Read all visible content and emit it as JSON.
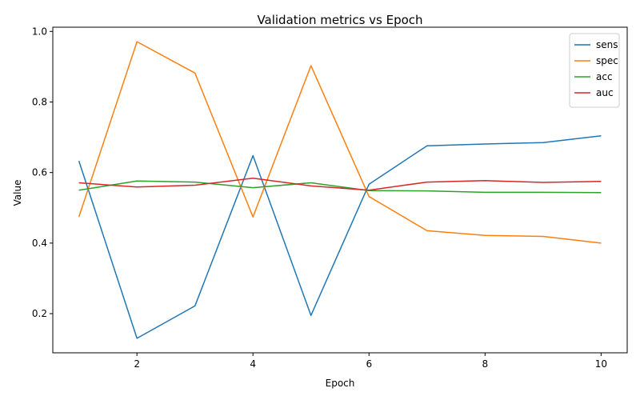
{
  "chart_data": {
    "type": "line",
    "title": "Validation metrics vs Epoch",
    "xlabel": "Epoch",
    "ylabel": "Value",
    "xlim": [
      0.55,
      10.45
    ],
    "ylim": [
      0.089,
      1.012
    ],
    "x_ticks": [
      2,
      4,
      6,
      8,
      10
    ],
    "y_ticks": [
      0.2,
      0.4,
      0.6,
      0.8,
      1.0
    ],
    "y_tick_labels": [
      "0.2",
      "0.4",
      "0.6",
      "0.8",
      "1.0"
    ],
    "grid": false,
    "legend_position": "top-right",
    "x": [
      1,
      2,
      3,
      4,
      5,
      6,
      7,
      8,
      9,
      10
    ],
    "series": [
      {
        "name": "sens",
        "color": "#1f77b4",
        "values": [
          0.633,
          0.13,
          0.222,
          0.648,
          0.195,
          0.567,
          0.676,
          0.681,
          0.685,
          0.704
        ]
      },
      {
        "name": "spec",
        "color": "#ff7f0e",
        "values": [
          0.474,
          0.971,
          0.882,
          0.474,
          0.903,
          0.532,
          0.435,
          0.422,
          0.419,
          0.4
        ]
      },
      {
        "name": "acc",
        "color": "#2ca02c",
        "values": [
          0.55,
          0.576,
          0.573,
          0.557,
          0.571,
          0.549,
          0.548,
          0.544,
          0.544,
          0.543
        ]
      },
      {
        "name": "auc",
        "color": "#d62728",
        "values": [
          0.571,
          0.559,
          0.564,
          0.584,
          0.562,
          0.55,
          0.573,
          0.577,
          0.572,
          0.575
        ]
      }
    ]
  }
}
